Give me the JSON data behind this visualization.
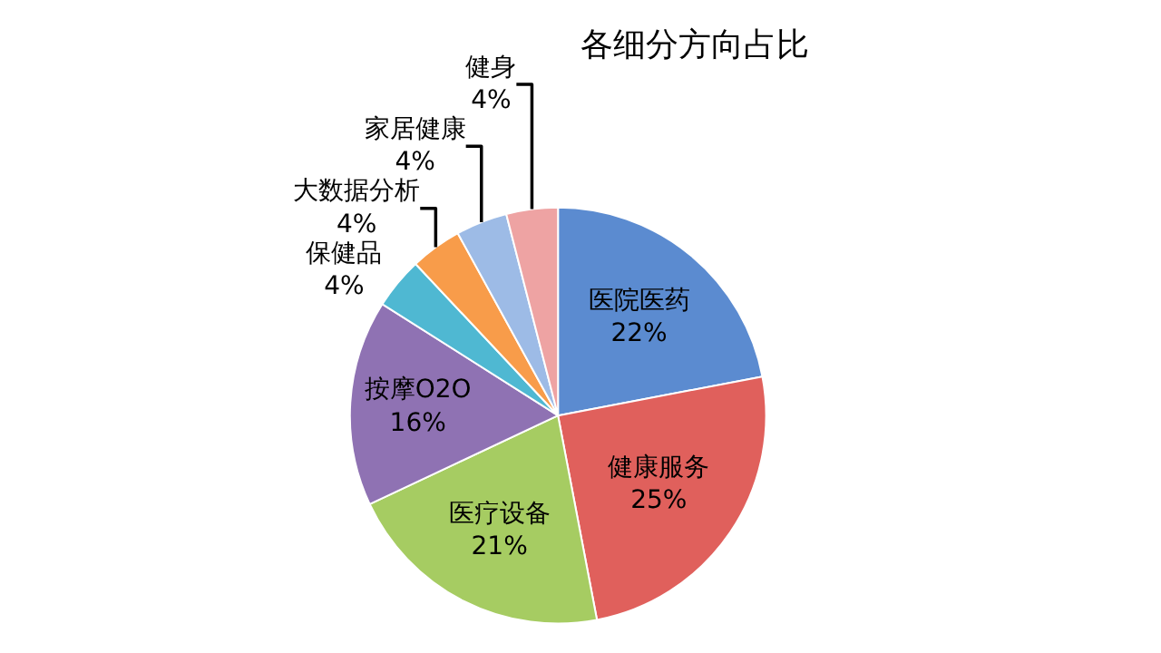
{
  "chart_data": {
    "type": "pie",
    "title": "各细分方向占比",
    "categories": [
      "医院医药",
      "健康服务",
      "医疗设备",
      "按摩O2O",
      "保健品",
      "大数据分析",
      "家居健康",
      "健身"
    ],
    "values": [
      22,
      25,
      21,
      16,
      4,
      4,
      4,
      4
    ],
    "value_labels": [
      "22%",
      "25%",
      "21%",
      "16%",
      "4%",
      "4%",
      "4%",
      "4%"
    ],
    "colors": [
      "#5b8bd0",
      "#e0605c",
      "#a6cc62",
      "#8f72b3",
      "#4fb8d2",
      "#f89c4a",
      "#9dbbe6",
      "#eea3a3"
    ],
    "legend": false
  }
}
